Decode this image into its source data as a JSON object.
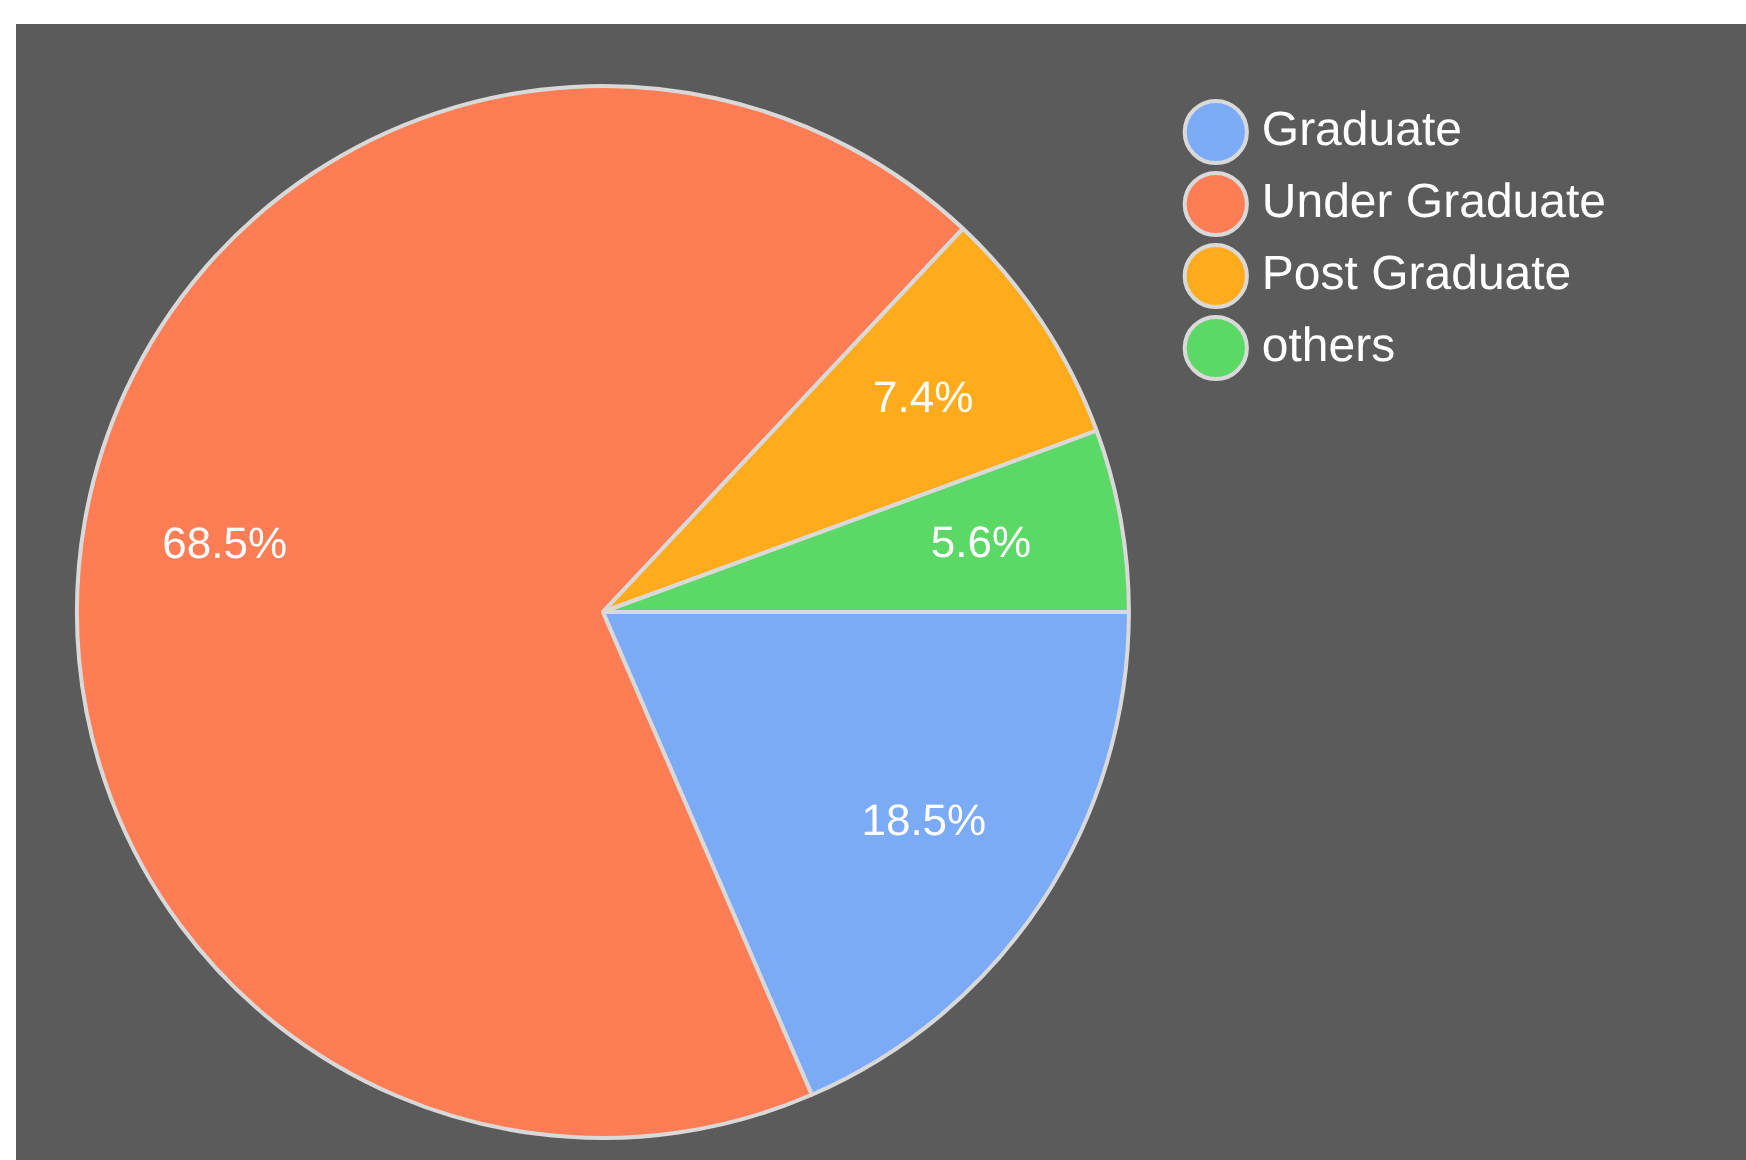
{
  "chart_data": {
    "type": "pie",
    "categories": [
      "Graduate",
      "Under Graduate",
      "Post Graduate",
      "others"
    ],
    "values": [
      18.5,
      68.5,
      7.4,
      5.6
    ],
    "colors": [
      "#7baaf7",
      "#ff7d55",
      "#ffab1c",
      "#5bd865"
    ],
    "value_labels": [
      "18.5%",
      "68.5%",
      "7.4%",
      "5.6%"
    ],
    "legend": "top right"
  }
}
